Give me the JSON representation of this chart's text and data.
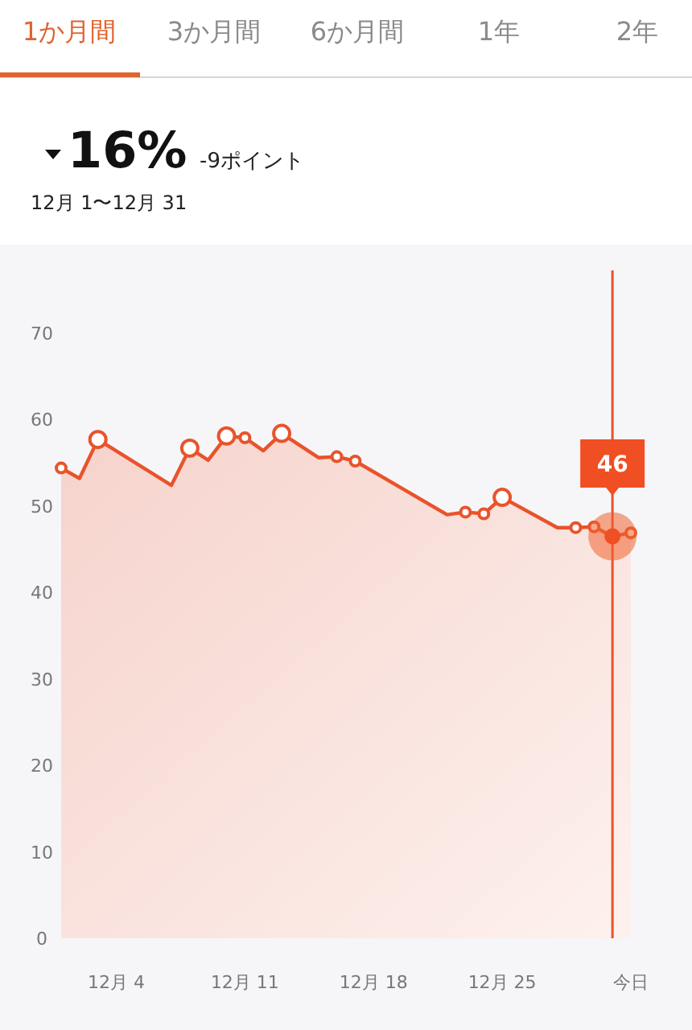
{
  "chart_data": {
    "type": "area",
    "title": "16%",
    "subtitle": "-9ポイント",
    "annotations": [
      "1か月間",
      "3か月間",
      "6か月間",
      "1年",
      "2年",
      "12月 1〜12月 31",
      {
        "text": "46",
        "y": 46.5
      }
    ],
    "categories": [
      null,
      null,
      null,
      "12月 4",
      null,
      null,
      null,
      null,
      null,
      null,
      "12月 11",
      null,
      null,
      null,
      null,
      null,
      null,
      "12月 18",
      null,
      null,
      null,
      null,
      null,
      null,
      "12月 25",
      null,
      null,
      null,
      null,
      null,
      null,
      "今日"
    ],
    "series": [
      {
        "color": "#e9532b",
        "values": [
          54.4,
          53.2,
          57.7,
          null,
          null,
          null,
          52.4,
          56.7,
          55.3,
          58.1,
          57.9,
          56.4,
          58.4,
          null,
          55.6,
          55.7,
          55.2,
          null,
          null,
          null,
          null,
          49.0,
          49.3,
          49.1,
          51.0,
          null,
          null,
          47.5,
          47.5,
          47.6,
          46.5,
          46.9
        ]
      },
      {
        "type": "scatter",
        "color": "#e9532b",
        "marker": "circle",
        "values": [
          null,
          null,
          57.7,
          null,
          null,
          null,
          null,
          56.7,
          null,
          58.1,
          null,
          null,
          58.4,
          null,
          null,
          null,
          null,
          null,
          null,
          null,
          null,
          null,
          null,
          null,
          51.0,
          null,
          null,
          null,
          null,
          null,
          null,
          null
        ]
      },
      {
        "type": "scatter",
        "color": "#e9532b",
        "marker": "circle",
        "values": [
          54.4,
          null,
          null,
          null,
          null,
          null,
          null,
          null,
          null,
          null,
          57.9,
          null,
          null,
          null,
          null,
          55.7,
          55.2,
          null,
          null,
          null,
          null,
          null,
          49.3,
          49.1,
          null,
          null,
          null,
          null,
          47.5,
          47.6,
          null,
          46.9
        ]
      }
    ],
    "ylim": [
      0,
      70
    ],
    "yticks": [
      0,
      10,
      20,
      30,
      40,
      50,
      60,
      70
    ],
    "grid": false
  }
}
